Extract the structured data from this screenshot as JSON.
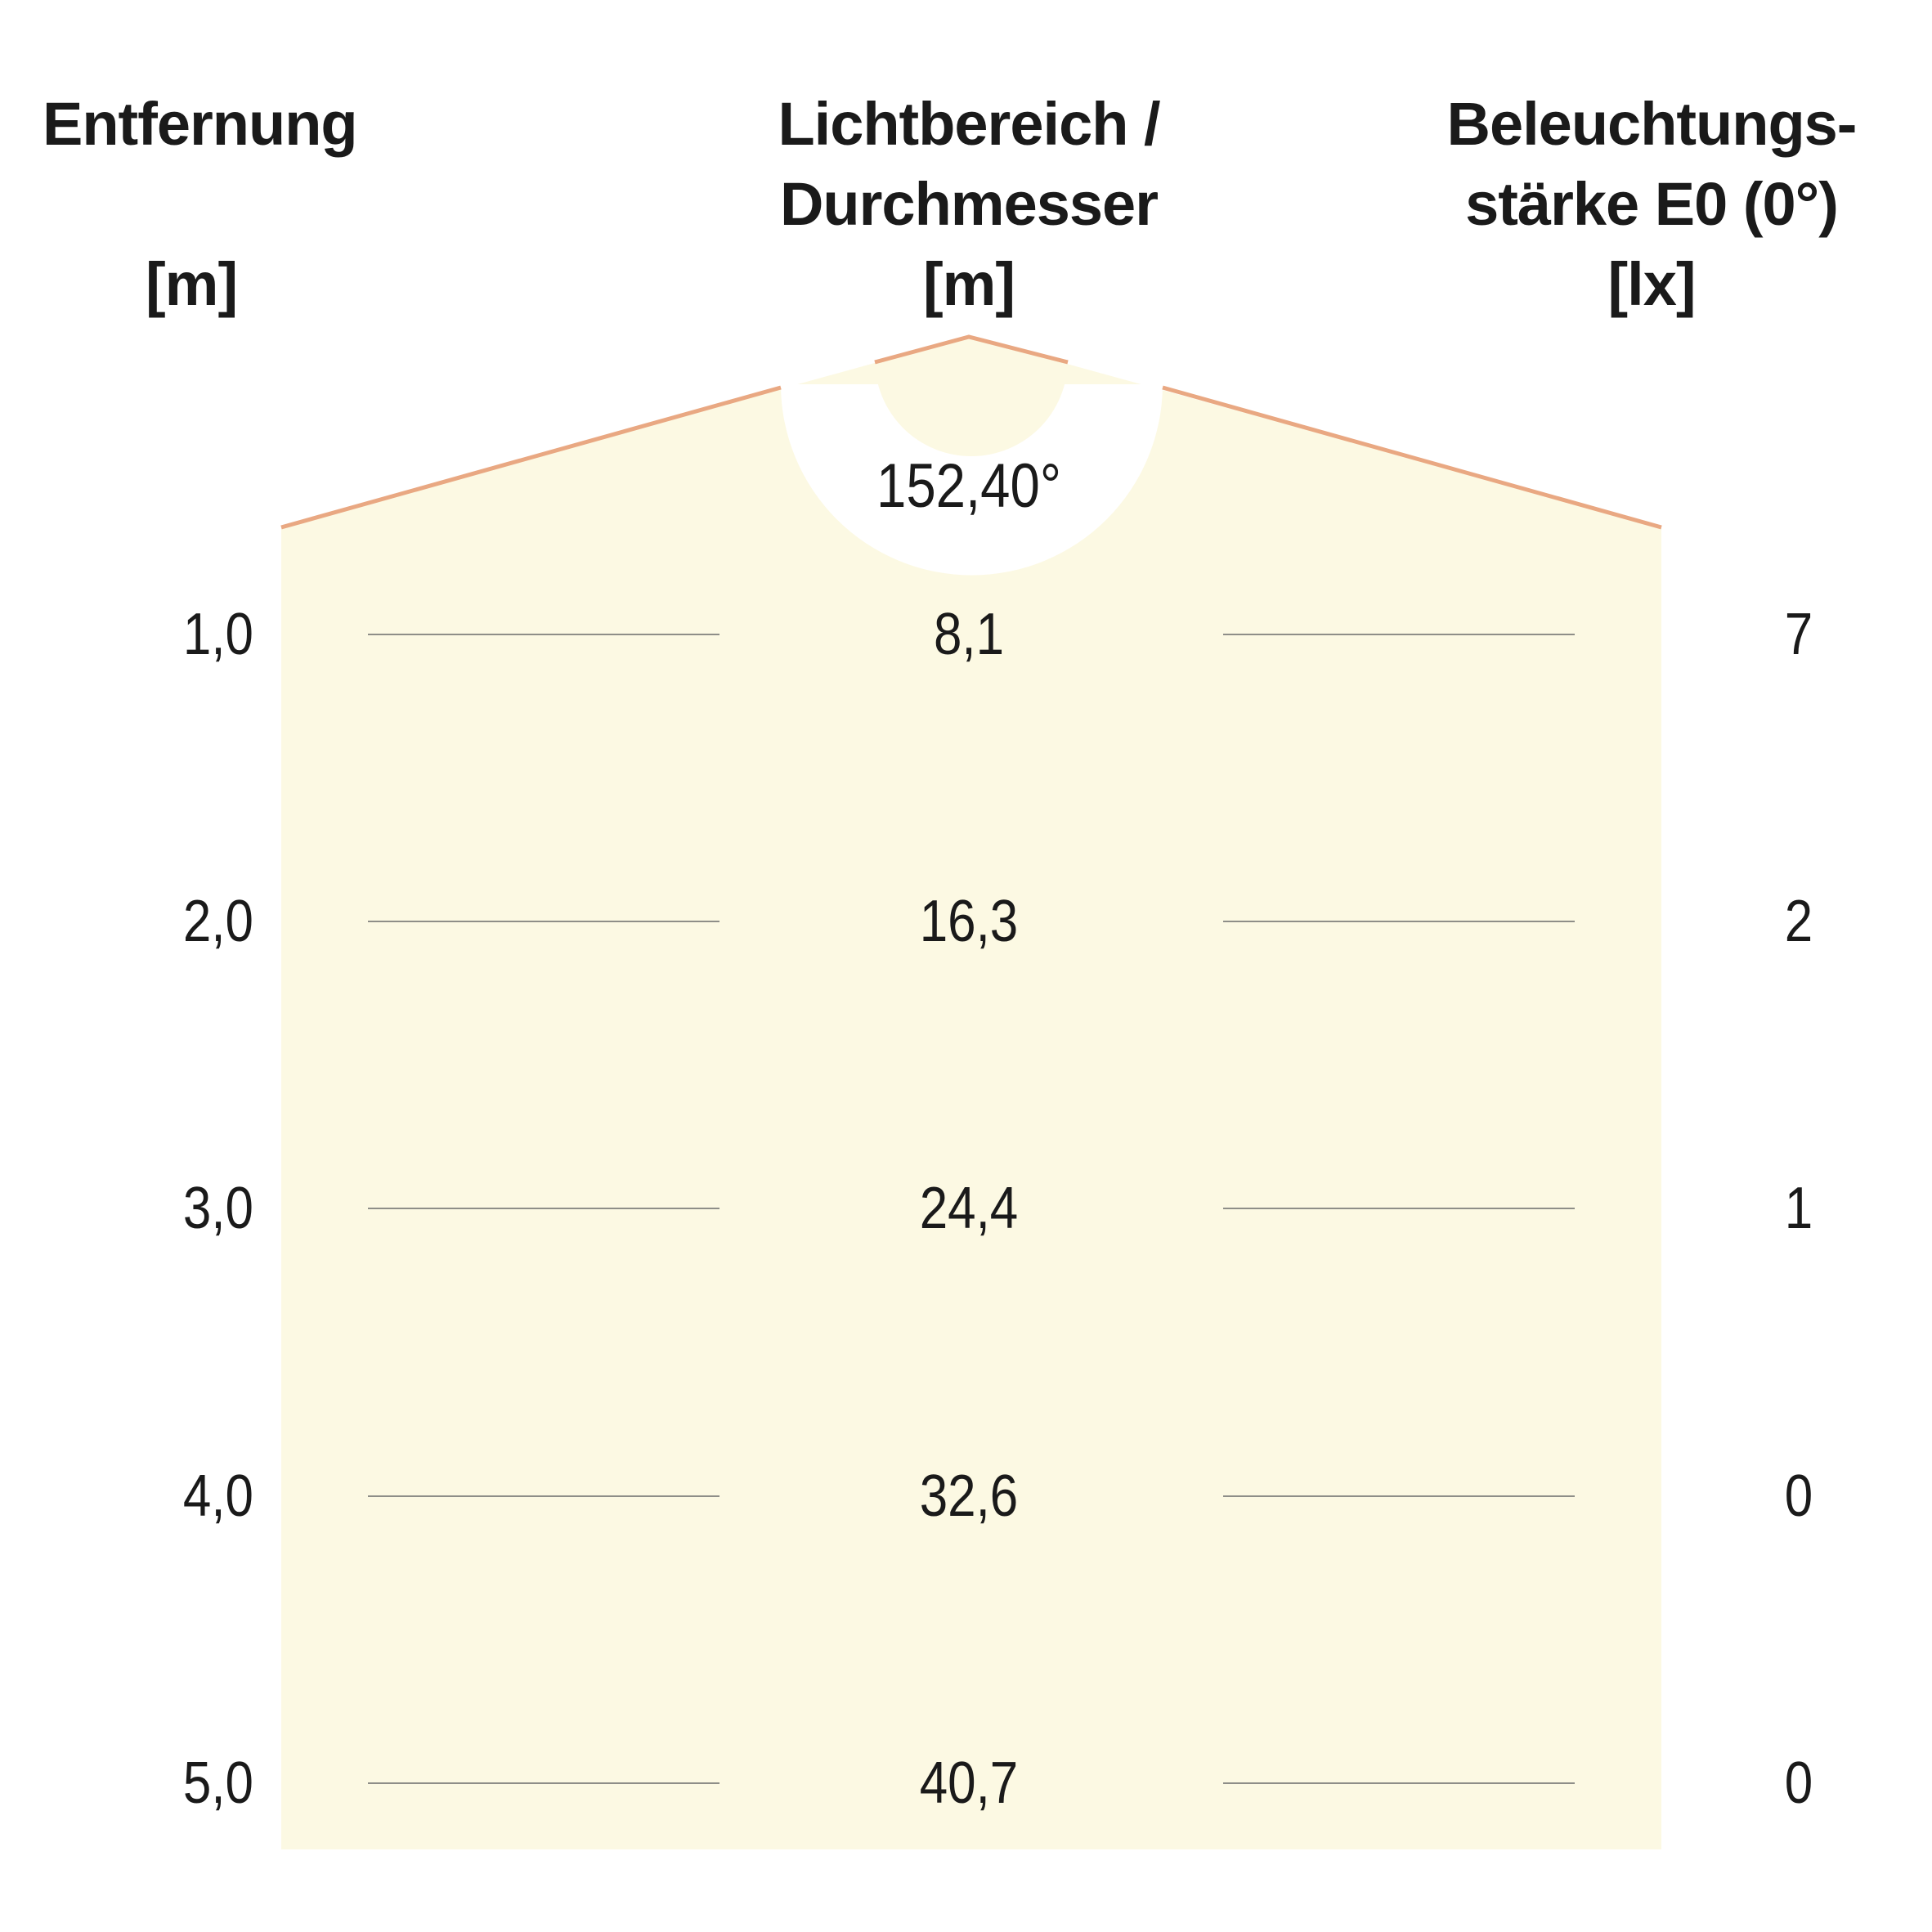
{
  "headers": {
    "distance": {
      "title": "Entfernung",
      "unit": "[m]"
    },
    "diameter": {
      "title_line1": "Lichtbereich /",
      "title_line2": "Durchmesser",
      "unit": "[m]"
    },
    "illuminance": {
      "title_line1": "Beleuchtungs-",
      "title_line2": "stärke E0 (0°)",
      "unit": "[lx]"
    }
  },
  "beam": {
    "angle_label": "152,40°",
    "fill_color": "#fcf9e3",
    "outline_color": "#e9a882"
  },
  "rows": [
    {
      "distance": "1,0",
      "diameter": "8,1",
      "illuminance": "7"
    },
    {
      "distance": "2,0",
      "diameter": "16,3",
      "illuminance": "2"
    },
    {
      "distance": "3,0",
      "diameter": "24,4",
      "illuminance": "1"
    },
    {
      "distance": "4,0",
      "diameter": "32,6",
      "illuminance": "0"
    },
    {
      "distance": "5,0",
      "diameter": "40,7",
      "illuminance": "0"
    }
  ]
}
